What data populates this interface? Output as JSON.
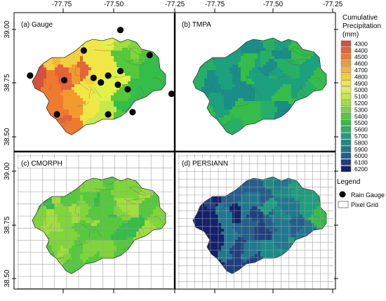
{
  "axes": {
    "x_ticks": [
      "-77.75",
      "-77.50",
      "-77.25"
    ],
    "y_ticks": [
      "39.00",
      "38.75",
      "38.50"
    ]
  },
  "panels": [
    {
      "id": "a",
      "label": "(a) Gauge",
      "pixel_grid": false,
      "gauges": true,
      "mode": "gauge"
    },
    {
      "id": "b",
      "label": "(b) TMPA",
      "pixel_grid": false,
      "gauges": false,
      "mode": "tmpa"
    },
    {
      "id": "c",
      "label": "(c) CMORPH",
      "pixel_grid": true,
      "gauges": false,
      "mode": "cmorph"
    },
    {
      "id": "d",
      "label": "(d) PERSIANN",
      "pixel_grid": true,
      "gauges": false,
      "mode": "persiann"
    }
  ],
  "colorbar": {
    "title_lines": [
      "Cumulative",
      "Precipitation",
      "(mm)"
    ],
    "entries": [
      {
        "label": "4300",
        "color": "#d7503c"
      },
      {
        "label": "4400",
        "color": "#e3643a"
      },
      {
        "label": "4500",
        "color": "#ee7a30"
      },
      {
        "label": "4600",
        "color": "#f29a2e"
      },
      {
        "label": "4700",
        "color": "#f5b63a"
      },
      {
        "label": "4800",
        "color": "#f3cf3d"
      },
      {
        "label": "4900",
        "color": "#f0e646"
      },
      {
        "label": "5000",
        "color": "#e2f04a"
      },
      {
        "label": "5100",
        "color": "#c6e84a"
      },
      {
        "label": "5200",
        "color": "#a2de3e"
      },
      {
        "label": "5300",
        "color": "#7ed63a"
      },
      {
        "label": "5400",
        "color": "#55c93c"
      },
      {
        "label": "5500",
        "color": "#35bc4a"
      },
      {
        "label": "5600",
        "color": "#27b065"
      },
      {
        "label": "5700",
        "color": "#1ca07d"
      },
      {
        "label": "5800",
        "color": "#1a8d88"
      },
      {
        "label": "5900",
        "color": "#1f7890"
      },
      {
        "label": "6000",
        "color": "#245e8c"
      },
      {
        "label": "6100",
        "color": "#213f7e"
      },
      {
        "label": "6200",
        "color": "#14206a"
      }
    ]
  },
  "legend": {
    "title": "Legend",
    "rain_gauge": "Rain Gauge",
    "pixel_grid": "Pixel Grid"
  },
  "map_data": {
    "lon_range": [
      -77.9,
      -77.25
    ],
    "lat_range": [
      38.45,
      39.05
    ],
    "gauge_stations": [
      {
        "lon": -77.47,
        "lat": 38.98
      },
      {
        "lon": -77.62,
        "lat": 38.89
      },
      {
        "lon": -77.35,
        "lat": 38.87
      },
      {
        "lon": -77.84,
        "lat": 38.78
      },
      {
        "lon": -77.7,
        "lat": 38.76
      },
      {
        "lon": -77.58,
        "lat": 38.77
      },
      {
        "lon": -77.55,
        "lat": 38.75
      },
      {
        "lon": -77.52,
        "lat": 38.78
      },
      {
        "lon": -77.47,
        "lat": 38.8
      },
      {
        "lon": -77.48,
        "lat": 38.74
      },
      {
        "lon": -77.44,
        "lat": 38.72
      },
      {
        "lon": -77.26,
        "lat": 38.7
      },
      {
        "lon": -77.42,
        "lat": 38.62
      },
      {
        "lon": -77.73,
        "lat": 38.61
      },
      {
        "lon": -77.52,
        "lat": 38.61
      }
    ]
  }
}
